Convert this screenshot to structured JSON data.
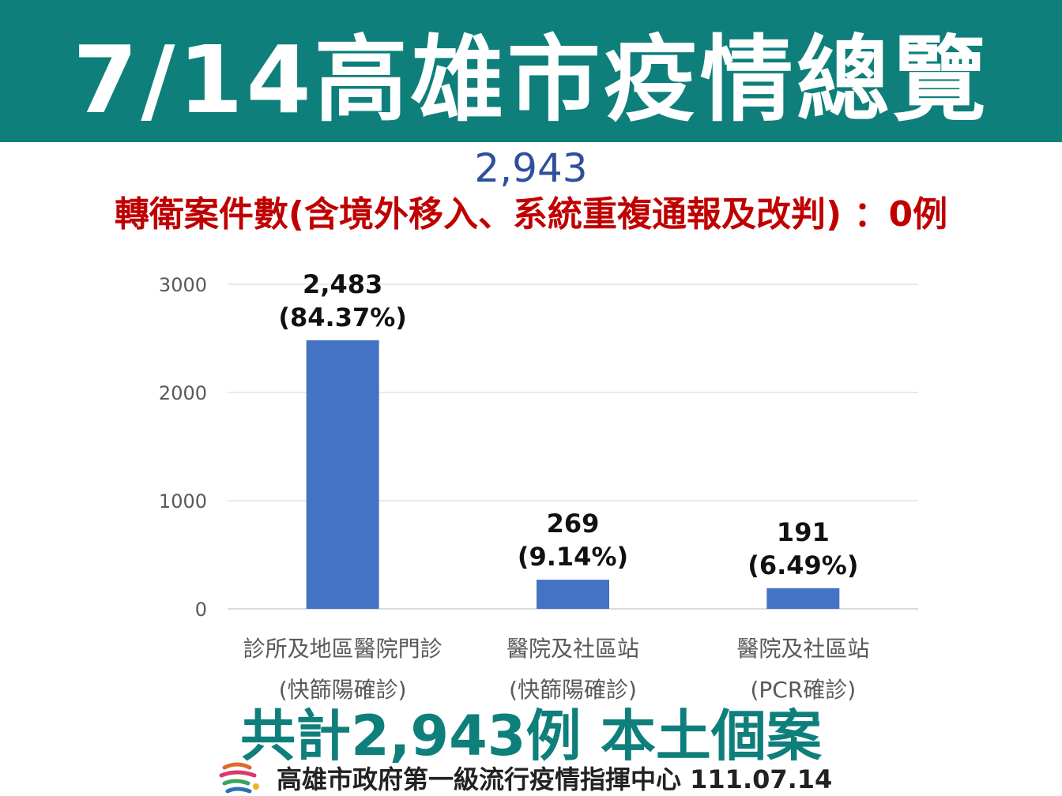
{
  "header": {
    "title": "7/14高雄市疫情總覽"
  },
  "total_top": "2,943",
  "transfer_line": "轉衛案件數(含境外移入、系統重複通報及改判) ：0例",
  "chart_data": {
    "type": "bar",
    "title": "",
    "xlabel": "",
    "ylabel": "",
    "ylim": [
      0,
      3000
    ],
    "yticks": [
      "0",
      "1000",
      "2000",
      "3000"
    ],
    "grid": true,
    "bar_color": "#4472c4",
    "categories": [
      {
        "line1": "診所及地區醫院門診",
        "line2": "(快篩陽確診)"
      },
      {
        "line1": "醫院及社區站",
        "line2": "(快篩陽確診)"
      },
      {
        "line1": "醫院及社區站",
        "line2": "(PCR確診)"
      }
    ],
    "values": [
      2483,
      269,
      191
    ],
    "data_labels": [
      {
        "count": "2,483",
        "percent": "(84.37%)"
      },
      {
        "count": "269",
        "percent": "(9.14%)"
      },
      {
        "count": "191",
        "percent": "(6.49%)"
      }
    ]
  },
  "summary": "共計2,943例 本土個案",
  "footer": {
    "text": "高雄市政府第一級流行疫情指揮中心 111.07.14"
  },
  "colors": {
    "header_bg": "#0e7f7b",
    "transfer_text": "#c00000",
    "total_text": "#2f4f9c",
    "summary_text": "#0e7f7b"
  }
}
